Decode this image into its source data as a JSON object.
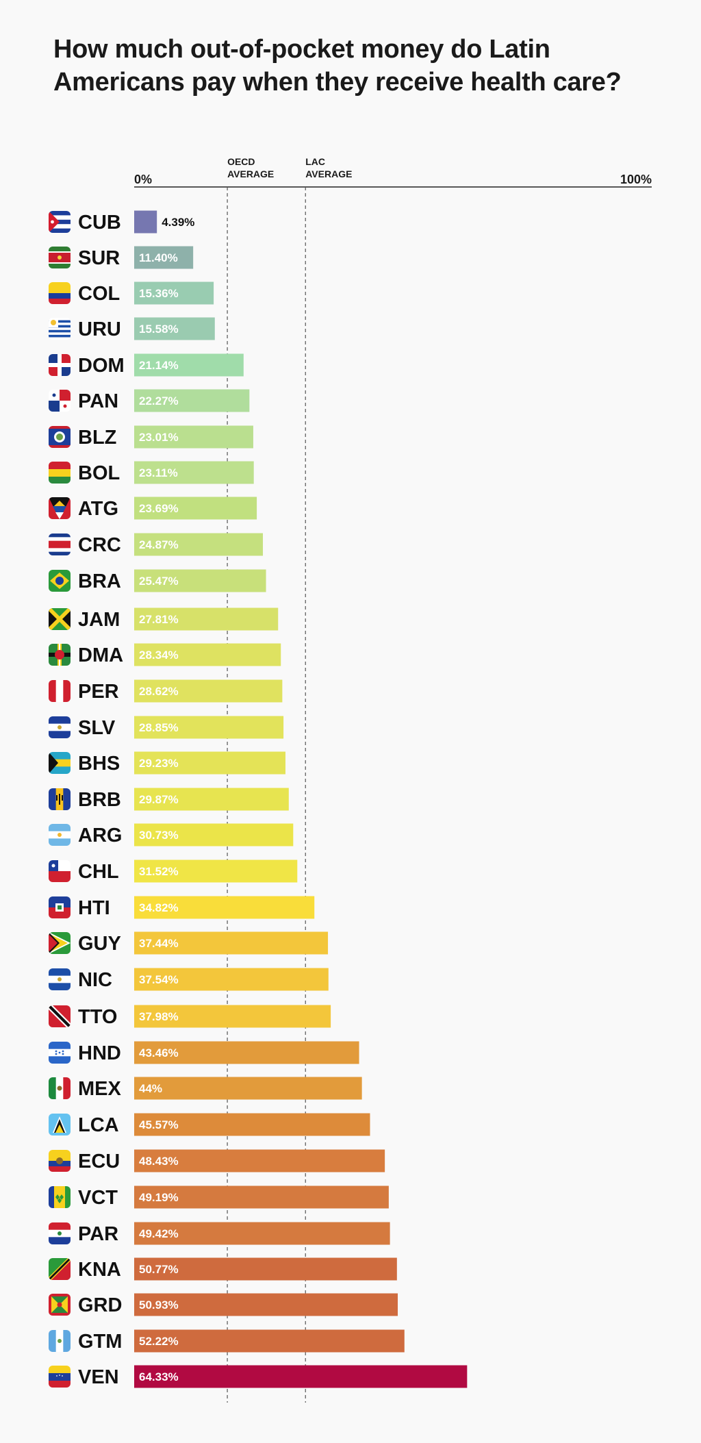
{
  "chart_data": {
    "type": "bar",
    "orientation": "horizontal",
    "title": "How much out-of-pocket money do Latin Americans pay when they receive health care?",
    "xlim": [
      0,
      100
    ],
    "axis_min_label": "0%",
    "axis_max_label": "100%",
    "reference_lines": [
      {
        "label_line1": "OECD",
        "label_line2": "AVERAGE",
        "value": 18
      },
      {
        "label_line1": "LAC",
        "label_line2": "AVERAGE",
        "value": 33.1
      }
    ],
    "categories": [
      "CUB",
      "SUR",
      "COL",
      "URU",
      "DOM",
      "PAN",
      "BLZ",
      "BOL",
      "ATG",
      "CRC",
      "BRA",
      "JAM",
      "DMA",
      "PER",
      "SLV",
      "BHS",
      "BRB",
      "ARG",
      "CHL",
      "HTI",
      "GUY",
      "NIC",
      "TTO",
      "HND",
      "MEX",
      "LCA",
      "ECU",
      "VCT",
      "PAR",
      "KNA",
      "GRD",
      "GTM",
      "VEN"
    ],
    "values": [
      4.39,
      11.4,
      15.36,
      15.58,
      21.14,
      22.27,
      23.01,
      23.11,
      23.69,
      24.87,
      25.47,
      27.81,
      28.34,
      28.62,
      28.85,
      29.23,
      29.87,
      30.73,
      31.52,
      34.82,
      37.44,
      37.54,
      37.98,
      43.46,
      44,
      45.57,
      48.43,
      49.19,
      49.42,
      50.77,
      50.93,
      52.22,
      64.33
    ],
    "value_labels": [
      "4.39%",
      "11.40%",
      "15.36%",
      "15.58%",
      "21.14%",
      "22.27%",
      "23.01%",
      "23.11%",
      "23.69%",
      "24.87%",
      "25.47%",
      "27.81%",
      "28.34%",
      "28.62%",
      "28.85%",
      "29.23%",
      "29.87%",
      "30.73%",
      "31.52%",
      "34.82%",
      "37.44%",
      "37.54%",
      "37.98%",
      "43.46%",
      "44%",
      "45.57%",
      "48.43%",
      "49.19%",
      "49.42%",
      "50.77%",
      "50.93%",
      "52.22%",
      "64.33%"
    ],
    "bar_colors": [
      "#7677b0",
      "#8eb1aa",
      "#99ccb1",
      "#9acbb0",
      "#a0dcaa",
      "#b0dd9c",
      "#badf8f",
      "#bde08d",
      "#c1e07f",
      "#c5e07e",
      "#c8e07a",
      "#d7e169",
      "#dee261",
      "#e0e25f",
      "#e2e35b",
      "#e4e357",
      "#e7e450",
      "#ebe449",
      "#f0e546",
      "#f9dd3a",
      "#f3c63b",
      "#f3c63b",
      "#f3c63b",
      "#e29b3b",
      "#e29b3b",
      "#dd8b3a",
      "#d87d3e",
      "#d57a3f",
      "#d57a3f",
      "#cf6b3e",
      "#cf6b3e",
      "#cf6b3e",
      "#b10a42"
    ],
    "flag_icons": [
      "cuba-flag-icon",
      "suriname-flag-icon",
      "colombia-flag-icon",
      "uruguay-flag-icon",
      "dominican-republic-flag-icon",
      "panama-flag-icon",
      "belize-flag-icon",
      "bolivia-flag-icon",
      "antigua-flag-icon",
      "costa-rica-flag-icon",
      "brazil-flag-icon",
      "jamaica-flag-icon",
      "dominica-flag-icon",
      "peru-flag-icon",
      "el-salvador-flag-icon",
      "bahamas-flag-icon",
      "barbados-flag-icon",
      "argentina-flag-icon",
      "chile-flag-icon",
      "haiti-flag-icon",
      "guyana-flag-icon",
      "nicaragua-flag-icon",
      "trinidad-flag-icon",
      "honduras-flag-icon",
      "mexico-flag-icon",
      "saint-lucia-flag-icon",
      "ecuador-flag-icon",
      "saint-vincent-flag-icon",
      "paraguay-flag-icon",
      "saint-kitts-flag-icon",
      "grenada-flag-icon",
      "guatemala-flag-icon",
      "venezuela-flag-icon"
    ]
  }
}
